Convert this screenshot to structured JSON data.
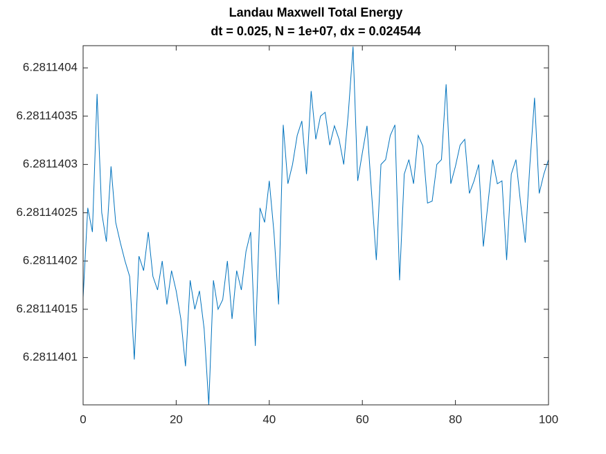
{
  "chart_data": {
    "type": "line",
    "title": "Landau Maxwell Total Energy",
    "subtitle": "dt = 0.025, N = 1e+07, dx = 0.024544",
    "x": [
      0,
      1,
      2,
      3,
      4,
      5,
      6,
      7,
      8,
      9,
      10,
      11,
      12,
      13,
      14,
      15,
      16,
      17,
      18,
      19,
      20,
      21,
      22,
      23,
      24,
      25,
      26,
      27,
      28,
      29,
      30,
      31,
      32,
      33,
      34,
      35,
      36,
      37,
      38,
      39,
      40,
      41,
      42,
      43,
      44,
      45,
      46,
      47,
      48,
      49,
      50,
      51,
      52,
      53,
      54,
      55,
      56,
      57,
      58,
      59,
      60,
      61,
      62,
      63,
      64,
      65,
      66,
      67,
      68,
      69,
      70,
      71,
      72,
      73,
      74,
      75,
      76,
      77,
      78,
      79,
      80,
      81,
      82,
      83,
      84,
      85,
      86,
      87,
      88,
      89,
      90,
      91,
      92,
      93,
      94,
      95,
      96,
      97,
      98,
      99,
      100
    ],
    "series": [
      {
        "color": "#0072bd",
        "values": [
          6.281140162,
          6.281140255,
          6.28114023,
          6.281140373,
          6.28114025,
          6.28114022,
          6.281140298,
          6.28114024,
          6.281140219,
          6.2811402,
          6.281140184,
          6.281140098,
          6.281140205,
          6.28114019,
          6.28114023,
          6.281140184,
          6.28114017,
          6.2811402,
          6.281140155,
          6.28114019,
          6.281140169,
          6.28114014,
          6.281140091,
          6.28114018,
          6.28114015,
          6.281140169,
          6.28114013,
          6.281140051,
          6.28114018,
          6.28114015,
          6.28114016,
          6.2811402,
          6.28114014,
          6.28114019,
          6.28114017,
          6.28114021,
          6.28114023,
          6.281140112,
          6.281140255,
          6.28114024,
          6.281140283,
          6.28114023,
          6.281140155,
          6.281140341,
          6.28114028,
          6.2811403,
          6.28114033,
          6.281140345,
          6.28114029,
          6.281140376,
          6.281140326,
          6.28114035,
          6.281140354,
          6.28114032,
          6.28114034,
          6.281140326,
          6.2811403,
          6.281140354,
          6.281140422,
          6.281140283,
          6.281140312,
          6.28114034,
          6.281140269,
          6.281140201,
          6.2811403,
          6.281140305,
          6.28114033,
          6.281140341,
          6.28114018,
          6.28114029,
          6.281140305,
          6.28114028,
          6.28114033,
          6.281140319,
          6.28114026,
          6.281140262,
          6.2811403,
          6.281140305,
          6.281140383,
          6.28114028,
          6.281140298,
          6.28114032,
          6.281140326,
          6.28114027,
          6.281140283,
          6.2811403,
          6.281140215,
          6.28114026,
          6.281140305,
          6.28114028,
          6.281140283,
          6.281140201,
          6.28114029,
          6.281140305,
          6.28114026,
          6.281140219,
          6.2811403,
          6.281140369,
          6.28114027,
          6.28114029,
          6.281140305
        ]
      }
    ],
    "xlim": [
      0,
      100
    ],
    "xticks": [
      0,
      20,
      40,
      60,
      80,
      100
    ],
    "ylim": [
      6.281140051,
      6.281140423
    ],
    "yticks": [
      6.2811401,
      6.28114015,
      6.2811402,
      6.28114025,
      6.2811403,
      6.28114035,
      6.2811404
    ]
  }
}
